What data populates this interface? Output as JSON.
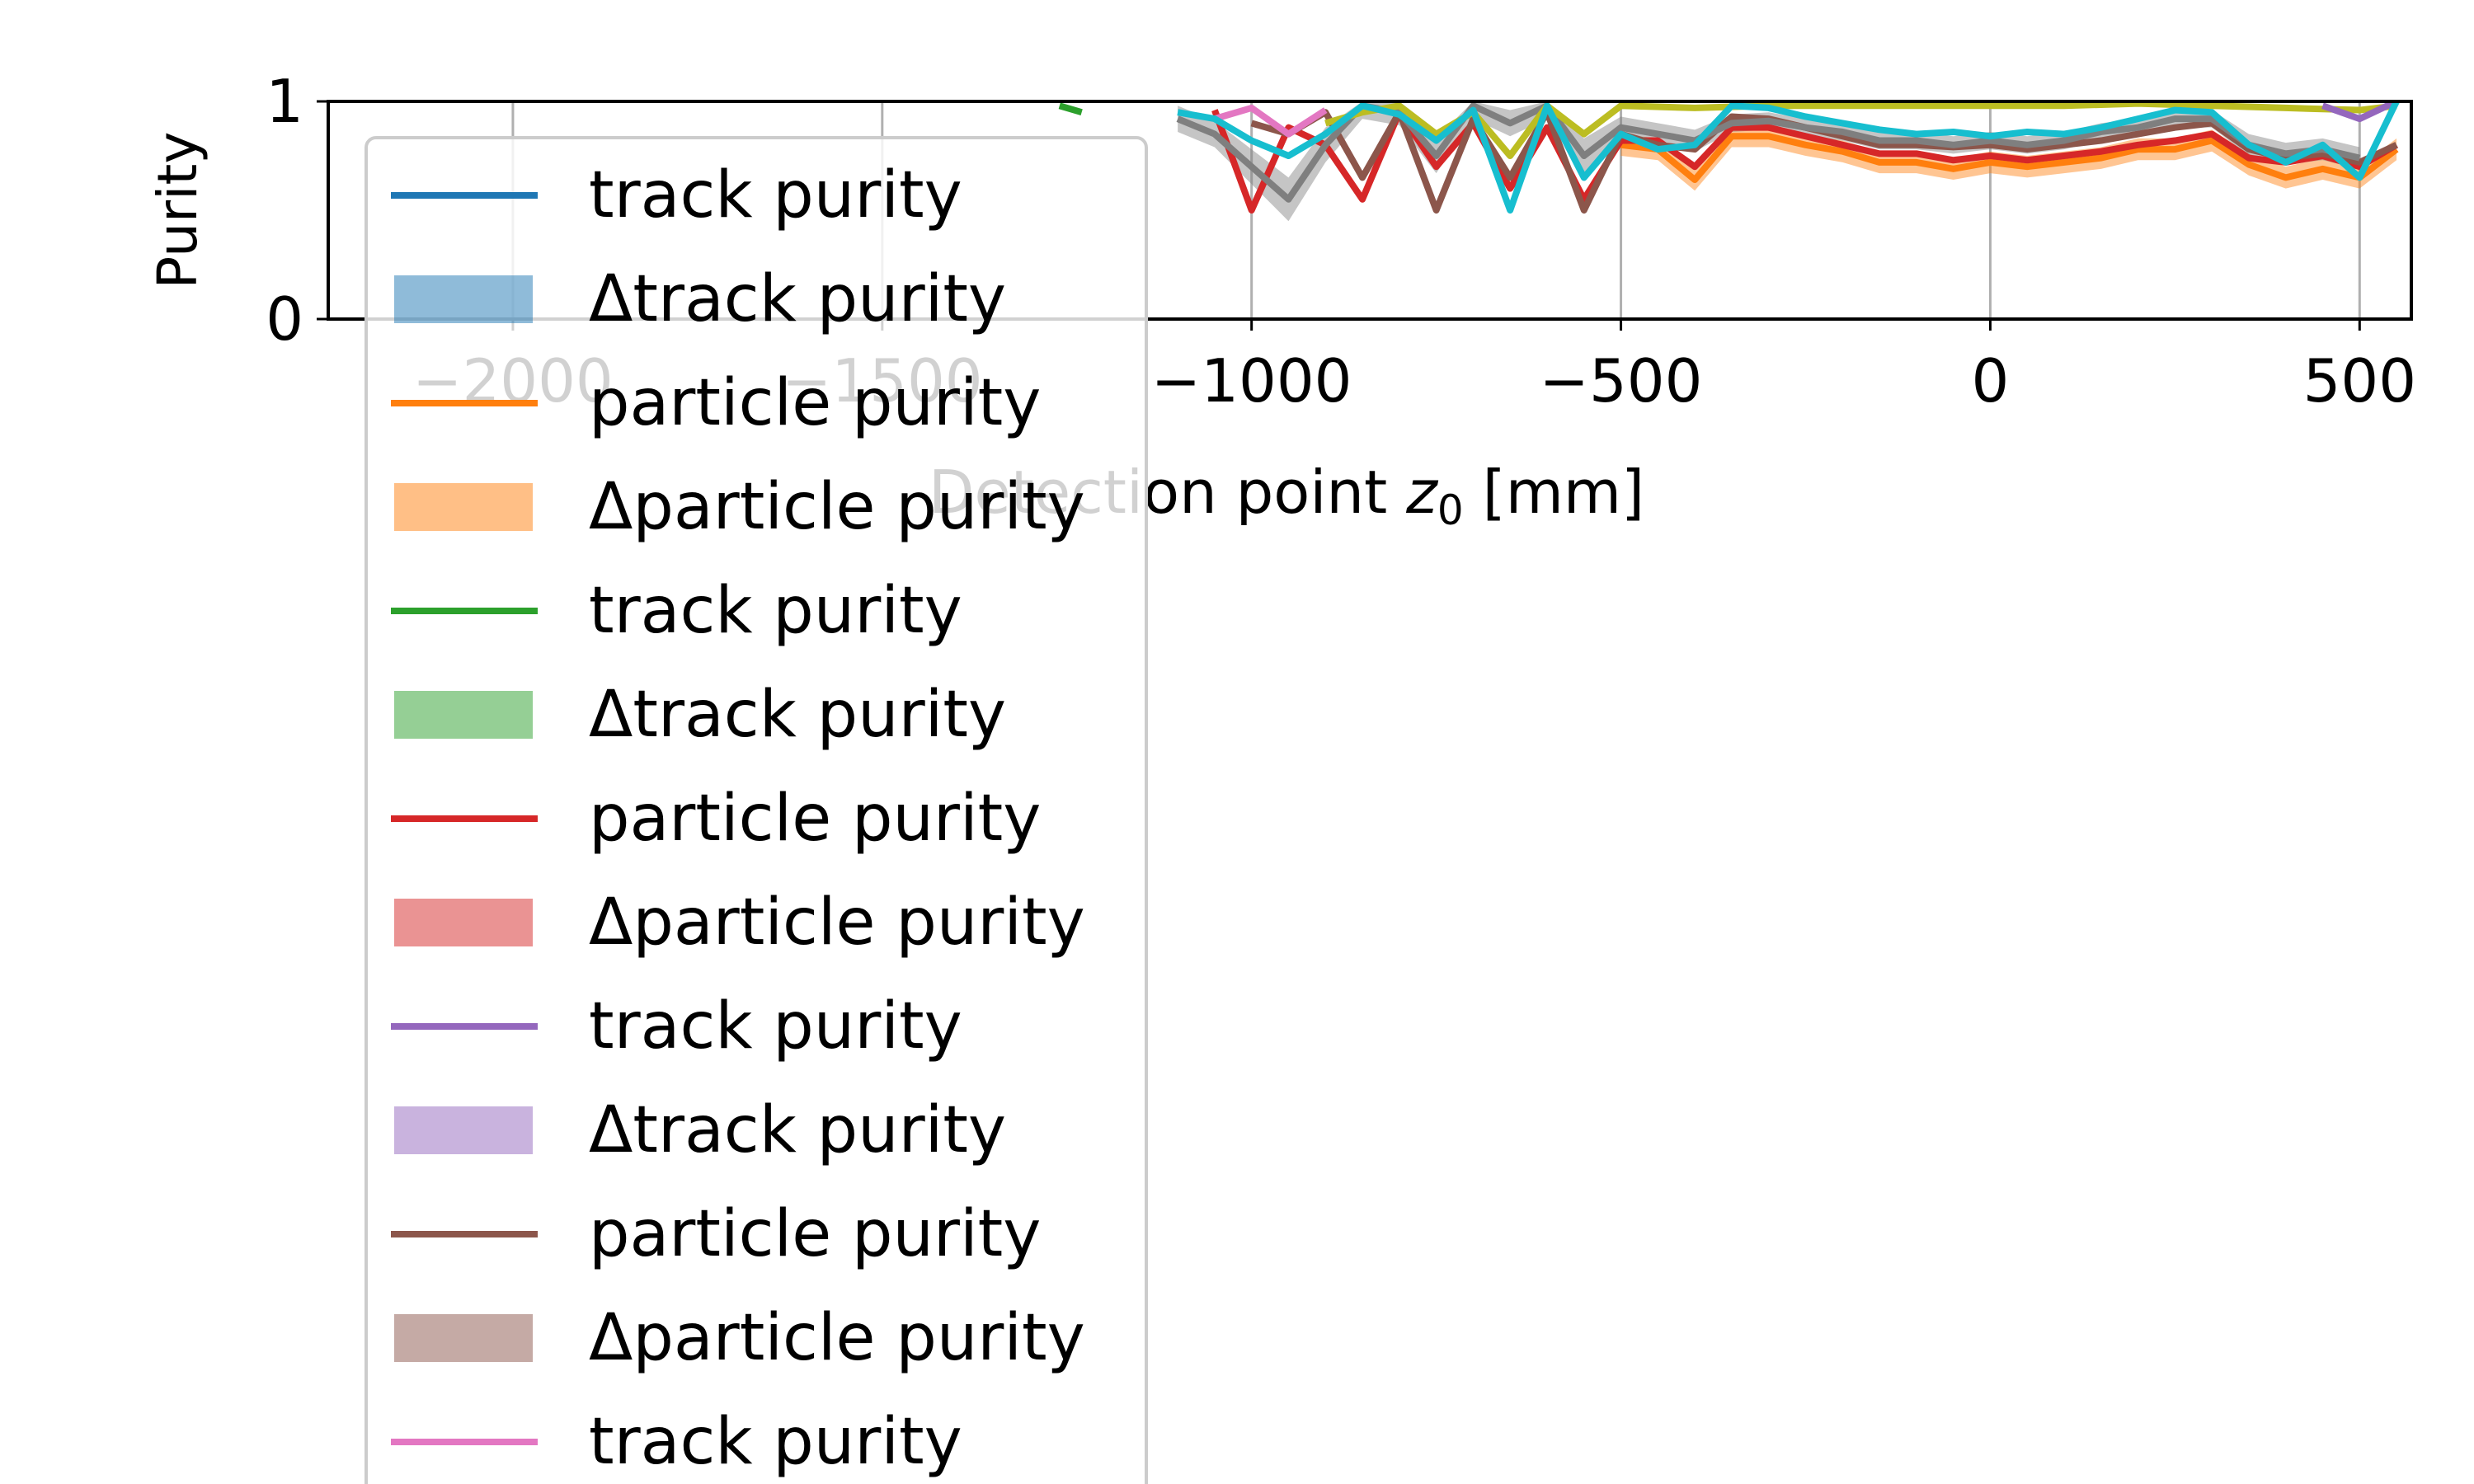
{
  "chart_data": {
    "type": "line",
    "title": "",
    "xlabel_prefix": "Detection point ",
    "xlabel_var": "z",
    "xlabel_sub": "0",
    "xlabel_suffix": " [mm]",
    "ylabel": "Purity",
    "xlim": [
      -2250,
      570
    ],
    "ylim": [
      0,
      1
    ],
    "xticks": [
      -2000,
      -1500,
      -1000,
      -500,
      0,
      500
    ],
    "xtick_labels": [
      "−2000",
      "−1500",
      "−1000",
      "−500",
      "0",
      "500"
    ],
    "yticks": [
      0,
      1
    ],
    "ytick_labels": [
      "0",
      "1"
    ],
    "grid": "vertical",
    "legend_position": "upper-left",
    "legend": [
      {
        "label": "track purity",
        "kind": "line",
        "color": "#1f77b4"
      },
      {
        "label": "Δtrack purity",
        "kind": "band",
        "color": "#1f77b4"
      },
      {
        "label": "particle purity",
        "kind": "line",
        "color": "#ff7f0e"
      },
      {
        "label": "Δparticle purity",
        "kind": "band",
        "color": "#ff7f0e"
      },
      {
        "label": "track purity",
        "kind": "line",
        "color": "#2ca02c"
      },
      {
        "label": "Δtrack purity",
        "kind": "band",
        "color": "#2ca02c"
      },
      {
        "label": "particle purity",
        "kind": "line",
        "color": "#d62728"
      },
      {
        "label": "Δparticle purity",
        "kind": "band",
        "color": "#d62728"
      },
      {
        "label": "track purity",
        "kind": "line",
        "color": "#9467bd"
      },
      {
        "label": "Δtrack purity",
        "kind": "band",
        "color": "#9467bd"
      },
      {
        "label": "particle purity",
        "kind": "line",
        "color": "#8c564b"
      },
      {
        "label": "Δparticle purity",
        "kind": "band",
        "color": "#8c564b"
      },
      {
        "label": "track purity",
        "kind": "line",
        "color": "#e377c2"
      }
    ],
    "series": [
      {
        "color": "#ff7f0e",
        "x": [
          -500,
          -450,
          -400,
          -350,
          -300,
          -250,
          -200,
          -150,
          -100,
          -50,
          0,
          50,
          100,
          150,
          200,
          250,
          300,
          350,
          400,
          450,
          500,
          550
        ],
        "y": [
          0.8,
          0.78,
          0.64,
          0.84,
          0.84,
          0.8,
          0.77,
          0.72,
          0.72,
          0.69,
          0.72,
          0.7,
          0.72,
          0.74,
          0.78,
          0.78,
          0.82,
          0.71,
          0.65,
          0.69,
          0.65,
          0.78
        ],
        "band": [
          0.05,
          0.05,
          0.05,
          0.05,
          0.05,
          0.05,
          0.05,
          0.05,
          0.05,
          0.05,
          0.05,
          0.05,
          0.05,
          0.05,
          0.05,
          0.05,
          0.05,
          0.05,
          0.05,
          0.05,
          0.05,
          0.05
        ]
      },
      {
        "color": "#d62728",
        "x": [
          -1050,
          -1000,
          -950,
          -900,
          -850,
          -800,
          -750,
          -700,
          -650,
          -600,
          -550,
          -500,
          -450,
          -400,
          -350,
          -300,
          -250,
          -200,
          -150,
          -100,
          -50,
          0,
          50,
          100,
          150,
          200,
          250,
          300,
          350,
          400,
          450,
          500,
          550
        ],
        "y": [
          0.96,
          0.5,
          0.88,
          0.8,
          0.55,
          0.95,
          0.7,
          0.9,
          0.6,
          0.88,
          0.55,
          0.82,
          0.82,
          0.7,
          0.88,
          0.88,
          0.84,
          0.8,
          0.76,
          0.76,
          0.73,
          0.75,
          0.73,
          0.75,
          0.77,
          0.8,
          0.82,
          0.85,
          0.74,
          0.72,
          0.75,
          0.7,
          0.8
        ]
      },
      {
        "color": "#8c564b",
        "x": [
          -1000,
          -950,
          -900,
          -850,
          -800,
          -750,
          -700,
          -650,
          -600,
          -550,
          -500,
          -450,
          -400,
          -350,
          -300,
          -250,
          -200,
          -150,
          -100,
          -50,
          0,
          50,
          100,
          150,
          200,
          250,
          300,
          350,
          400,
          450,
          500,
          550
        ],
        "y": [
          0.9,
          0.85,
          0.95,
          0.65,
          0.95,
          0.5,
          0.92,
          0.65,
          0.95,
          0.5,
          0.85,
          0.8,
          0.78,
          0.93,
          0.92,
          0.88,
          0.84,
          0.8,
          0.8,
          0.79,
          0.8,
          0.78,
          0.8,
          0.82,
          0.85,
          0.88,
          0.9,
          0.78,
          0.74,
          0.76,
          0.72,
          0.8
        ]
      },
      {
        "color": "#7f7f7f",
        "x": [
          -1100,
          -1050,
          -1000,
          -950,
          -900,
          -850,
          -800,
          -750,
          -700,
          -650,
          -600,
          -550,
          -500,
          -450,
          -400,
          -350,
          -300,
          -250,
          -200,
          -150,
          -100,
          -50,
          0,
          50,
          100,
          150,
          200,
          250,
          300,
          350,
          400,
          450,
          500
        ],
        "y": [
          0.92,
          0.85,
          0.7,
          0.55,
          0.8,
          0.98,
          0.95,
          0.75,
          0.98,
          0.9,
          0.98,
          0.75,
          0.88,
          0.85,
          0.82,
          0.9,
          0.91,
          0.88,
          0.86,
          0.82,
          0.82,
          0.8,
          0.82,
          0.8,
          0.82,
          0.86,
          0.88,
          0.92,
          0.92,
          0.8,
          0.76,
          0.78,
          0.74
        ],
        "band": [
          0.06,
          0.06,
          0.08,
          0.1,
          0.08,
          0.06,
          0.06,
          0.08,
          0.06,
          0.06,
          0.06,
          0.08,
          0.05,
          0.05,
          0.05,
          0.04,
          0.04,
          0.04,
          0.04,
          0.04,
          0.04,
          0.04,
          0.04,
          0.04,
          0.04,
          0.04,
          0.04,
          0.04,
          0.04,
          0.05,
          0.05,
          0.05,
          0.05
        ]
      },
      {
        "color": "#bcbd22",
        "x": [
          -900,
          -850,
          -800,
          -750,
          -700,
          -650,
          -600,
          -550,
          -500,
          -400,
          -300,
          -200,
          -100,
          0,
          100,
          200,
          300,
          400,
          500,
          550
        ],
        "y": [
          0.9,
          0.95,
          0.98,
          0.85,
          0.95,
          0.75,
          0.98,
          0.85,
          0.98,
          0.97,
          0.98,
          0.98,
          0.98,
          0.98,
          0.98,
          0.99,
          0.98,
          0.97,
          0.96,
          0.98
        ]
      },
      {
        "color": "#e377c2",
        "x": [
          -1050,
          -1000,
          -950,
          -900
        ],
        "y": [
          0.92,
          0.97,
          0.85,
          0.96
        ]
      },
      {
        "color": "#9467bd",
        "x": [
          450,
          500,
          550
        ],
        "y": [
          0.98,
          0.92,
          1.0
        ]
      },
      {
        "color": "#2ca02c",
        "x": [
          -1260,
          -1230
        ],
        "y": [
          0.98,
          0.95
        ]
      },
      {
        "color": "#17becf",
        "x": [
          -1100,
          -1050,
          -1000,
          -950,
          -900,
          -850,
          -800,
          -750,
          -700,
          -650,
          -600,
          -550,
          -500,
          -450,
          -400,
          -350,
          -300,
          -250,
          -200,
          -150,
          -100,
          -50,
          0,
          50,
          100,
          150,
          200,
          250,
          300,
          350,
          400,
          450,
          500,
          550
        ],
        "y": [
          0.95,
          0.92,
          0.82,
          0.75,
          0.85,
          0.98,
          0.94,
          0.82,
          0.96,
          0.5,
          0.98,
          0.65,
          0.85,
          0.78,
          0.8,
          0.98,
          0.97,
          0.93,
          0.9,
          0.87,
          0.85,
          0.86,
          0.84,
          0.86,
          0.85,
          0.88,
          0.92,
          0.96,
          0.95,
          0.8,
          0.72,
          0.8,
          0.65,
          1.0
        ]
      }
    ]
  }
}
